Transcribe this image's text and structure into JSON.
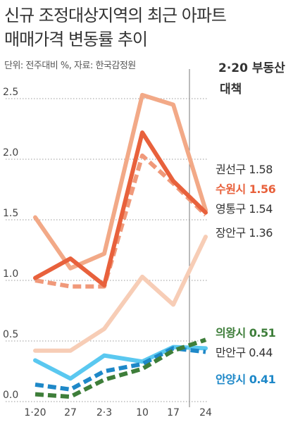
{
  "title_line1": "신규 조정대상지역의 최근 아파트",
  "title_line2": "매매가격 변동률 추이",
  "subtitle": "단위: 전주대비 %, 자료: 한국감정원",
  "colors": {
    "grid": "#999999",
    "axis_text": "#444444",
    "event_line": "#777777"
  },
  "chart_data": {
    "type": "line",
    "title": "신규 조정대상지역의 최근 아파트 매매가격 변동률 추이",
    "subtitle": "단위: 전주대비 %, 자료: 한국감정원",
    "categories": [
      "1·20",
      "27",
      "2·3",
      "10",
      "17",
      "24"
    ],
    "yticks": [
      "2.5",
      "2.0",
      "1.5",
      "1.0",
      "0.5",
      "0.0"
    ],
    "ylim": [
      0,
      2.6
    ],
    "annotation": {
      "text_line1": "2·20 부동산",
      "text_line2": "대책",
      "after_category": "17"
    },
    "series": [
      {
        "name": "권선구",
        "label": "권선구 1.58",
        "values": [
          1.52,
          1.1,
          1.22,
          2.53,
          2.45,
          1.58
        ],
        "color": "#F2A987",
        "dashed": false,
        "label_color": "#333333",
        "label_bold": false
      },
      {
        "name": "수원시",
        "label": "수원시 1.56",
        "values": [
          1.02,
          1.18,
          0.96,
          2.22,
          1.82,
          1.56
        ],
        "color": "#E8613C",
        "dashed": false,
        "label_color": "#E8613C",
        "label_bold": true
      },
      {
        "name": "영통구",
        "label": "영통구 1.54",
        "values": [
          1.0,
          0.95,
          0.95,
          2.03,
          1.8,
          1.54
        ],
        "color": "#F0997A",
        "dashed": true,
        "label_color": "#333333",
        "label_bold": false
      },
      {
        "name": "장안구",
        "label": "장안구 1.36",
        "values": [
          0.42,
          0.42,
          0.6,
          1.03,
          0.8,
          1.36
        ],
        "color": "#F7CDB6",
        "dashed": false,
        "label_color": "#333333",
        "label_bold": false
      },
      {
        "name": "의왕시",
        "label": "의왕시 0.51",
        "values": [
          0.06,
          0.04,
          0.18,
          0.27,
          0.42,
          0.51
        ],
        "color": "#3E7E3A",
        "dashed": true,
        "label_color": "#3E7E3A",
        "label_bold": true
      },
      {
        "name": "만안구",
        "label": "만안구 0.44",
        "values": [
          0.34,
          0.19,
          0.38,
          0.33,
          0.45,
          0.44
        ],
        "color": "#5AC8F0",
        "dashed": false,
        "label_color": "#333333",
        "label_bold": false
      },
      {
        "name": "안양시",
        "label": "안양시 0.41",
        "values": [
          0.14,
          0.1,
          0.25,
          0.31,
          0.44,
          0.41
        ],
        "color": "#1E88C8",
        "dashed": true,
        "label_color": "#1E88C8",
        "label_bold": true
      }
    ]
  }
}
